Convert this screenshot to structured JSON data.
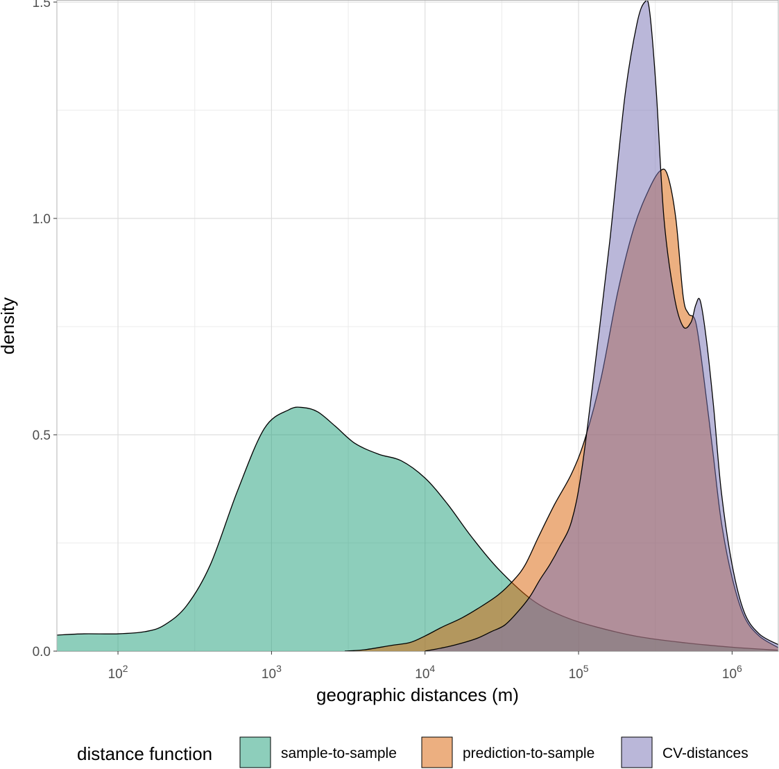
{
  "chart_data": {
    "type": "area",
    "xlabel": "geographic distances (m)",
    "ylabel": "density",
    "x_scale": "log10",
    "xlim": [
      40,
      2000000
    ],
    "ylim": [
      0,
      1.5
    ],
    "x_ticks": [
      {
        "value": 100,
        "base": "10",
        "exp": "2"
      },
      {
        "value": 1000,
        "base": "10",
        "exp": "3"
      },
      {
        "value": 10000,
        "base": "10",
        "exp": "4"
      },
      {
        "value": 100000,
        "base": "10",
        "exp": "5"
      },
      {
        "value": 1000000,
        "base": "10",
        "exp": "6"
      }
    ],
    "y_ticks": [
      {
        "value": 0,
        "label": "0.0"
      },
      {
        "value": 0.5,
        "label": "0.5"
      },
      {
        "value": 1.0,
        "label": "1.0"
      },
      {
        "value": 1.5,
        "label": "1.5"
      }
    ],
    "y_minor": [
      0.25,
      0.75,
      1.25
    ],
    "grid": true,
    "legend": {
      "title": "distance function",
      "position": "bottom"
    },
    "series": [
      {
        "name": "sample-to-sample",
        "color": "#1B9E77",
        "x": [
          40,
          60,
          100,
          150,
          200,
          280,
          400,
          600,
          900,
          1300,
          1600,
          2000,
          2600,
          3500,
          5000,
          7000,
          10000,
          14000,
          20000,
          30000,
          50000,
          80000,
          130000,
          250000,
          500000,
          1000000,
          2000000
        ],
        "y": [
          0.037,
          0.04,
          0.04,
          0.045,
          0.06,
          0.105,
          0.2,
          0.37,
          0.515,
          0.558,
          0.563,
          0.553,
          0.52,
          0.48,
          0.455,
          0.44,
          0.4,
          0.34,
          0.265,
          0.19,
          0.118,
          0.08,
          0.056,
          0.033,
          0.019,
          0.009,
          0.002
        ]
      },
      {
        "name": "prediction-to-sample",
        "color": "#D95F02",
        "x": [
          3000,
          4000,
          6000,
          8000,
          10000,
          13000,
          17000,
          22000,
          30000,
          38000,
          45000,
          55000,
          70000,
          90000,
          110000,
          140000,
          180000,
          230000,
          290000,
          340000,
          380000,
          430000,
          480000,
          520000,
          580000,
          650000,
          750000,
          850000,
          1000000,
          1200000,
          1500000,
          2000000
        ],
        "y": [
          0.0,
          0.003,
          0.013,
          0.02,
          0.035,
          0.056,
          0.075,
          0.098,
          0.13,
          0.165,
          0.2,
          0.265,
          0.34,
          0.41,
          0.49,
          0.63,
          0.83,
          0.98,
          1.07,
          1.11,
          1.1,
          1.0,
          0.82,
          0.78,
          0.76,
          0.64,
          0.46,
          0.3,
          0.17,
          0.08,
          0.035,
          0.008
        ]
      },
      {
        "name": "CV-distances",
        "color": "#7570B3",
        "x": [
          10000,
          14000,
          18000,
          22000,
          27000,
          33000,
          40000,
          48000,
          56000,
          65000,
          75000,
          90000,
          105000,
          130000,
          160000,
          200000,
          240000,
          270000,
          290000,
          320000,
          360000,
          420000,
          480000,
          540000,
          580000,
          620000,
          680000,
          760000,
          850000,
          1000000,
          1200000,
          1500000,
          2000000
        ],
        "y": [
          0.0,
          0.01,
          0.02,
          0.03,
          0.045,
          0.06,
          0.09,
          0.125,
          0.165,
          0.2,
          0.24,
          0.3,
          0.42,
          0.68,
          0.95,
          1.28,
          1.45,
          1.5,
          1.48,
          1.3,
          1.0,
          0.82,
          0.75,
          0.76,
          0.8,
          0.81,
          0.72,
          0.56,
          0.37,
          0.2,
          0.09,
          0.04,
          0.015
        ]
      }
    ]
  }
}
